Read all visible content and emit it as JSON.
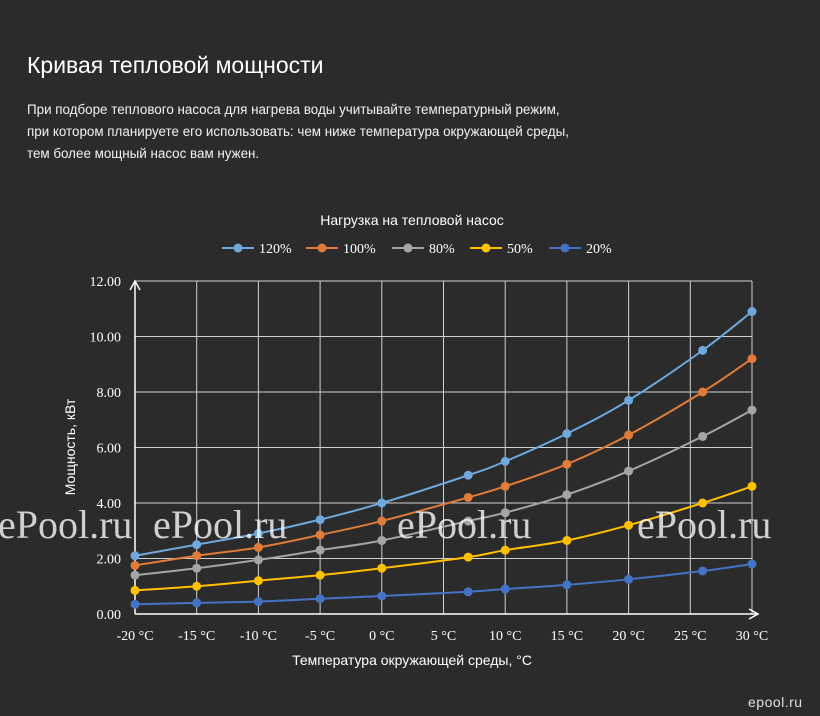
{
  "page": {
    "title": "Кривая тепловой мощности",
    "intro_lines": [
      "При подборе теплового насоса для нагрева воды учитывайте температурный режим,",
      "при котором планируете его использовать: чем ниже температура окружающей среды,",
      "тем более мощный насос вам нужен."
    ],
    "watermark": "ePool.ru",
    "corner_watermark": "epool.ru"
  },
  "chart_data": {
    "type": "line",
    "title": "Нагрузка на тепловой насос",
    "xlabel": "Температура окружающей среды, °C",
    "ylabel": "Мощность, кВт",
    "xlim": [
      -20,
      30
    ],
    "ylim": [
      0,
      12
    ],
    "y_ticks": [
      "0.00",
      "2.00",
      "4.00",
      "6.00",
      "8.00",
      "10.00",
      "12.00"
    ],
    "x_ticks": [
      "-20 °C",
      "-15 °C",
      "-10 °C",
      "-5 °C",
      "0 °C",
      "5 °C",
      "10 °C",
      "15 °C",
      "20 °C",
      "25 °C",
      "30 °C"
    ],
    "grid": true,
    "legend_position": "top",
    "x": [
      -20,
      -15,
      -10,
      -5,
      0,
      7,
      10,
      15,
      20,
      26,
      30
    ],
    "series": [
      {
        "name": "120%",
        "color": "#6fa8dc",
        "values": [
          2.1,
          2.5,
          2.9,
          3.4,
          4.0,
          5.0,
          5.5,
          6.5,
          7.7,
          9.5,
          10.9
        ]
      },
      {
        "name": "100%",
        "color": "#e07b39",
        "values": [
          1.75,
          2.1,
          2.4,
          2.85,
          3.35,
          4.2,
          4.6,
          5.4,
          6.45,
          8.0,
          9.2
        ]
      },
      {
        "name": "80%",
        "color": "#a5a5a5",
        "values": [
          1.4,
          1.65,
          1.95,
          2.3,
          2.65,
          3.35,
          3.65,
          4.3,
          5.15,
          6.4,
          7.35
        ]
      },
      {
        "name": "50%",
        "color": "#ffc000",
        "values": [
          0.85,
          1.0,
          1.2,
          1.4,
          1.65,
          2.05,
          2.3,
          2.65,
          3.2,
          4.0,
          4.6
        ]
      },
      {
        "name": "20%",
        "color": "#4472c4",
        "values": [
          0.35,
          0.4,
          0.45,
          0.55,
          0.65,
          0.8,
          0.9,
          1.05,
          1.25,
          1.55,
          1.8
        ]
      }
    ]
  }
}
